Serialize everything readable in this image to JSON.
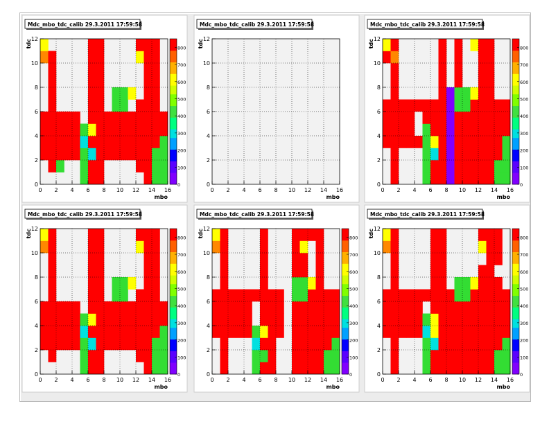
{
  "palette": [
    "#8000ff",
    "#5a00ff",
    "#0000ff",
    "#00a0ff",
    "#00e0e0",
    "#00ff80",
    "#40e040",
    "#80ff00",
    "#d0ff00",
    "#ffff00",
    "#ffb000",
    "#ff6000",
    "#ff0000"
  ],
  "colors": {
    "empty": "#f2f2f2",
    "frame_bg": "#ececec",
    "pad_bg": "#ffffff",
    "grid": "#000000"
  },
  "chart_data": [
    {
      "type": "heatmap",
      "title": "Mdc_mbo_tdc_calib 29.3.2011 17:59:58",
      "xlabel": "mbo",
      "ylabel": "tdc",
      "xlim": [
        0,
        16
      ],
      "ylim": [
        0,
        12
      ],
      "xticks": [
        "0",
        "2",
        "4",
        "6",
        "8",
        "10",
        "12",
        "14",
        "16"
      ],
      "yticks": [
        "0",
        "2",
        "4",
        "6",
        "8",
        "10",
        "12"
      ],
      "zticks": [
        "0",
        "100",
        "200",
        "300",
        "400",
        "500",
        "600",
        "700",
        "800"
      ],
      "zmax": 850,
      "cells": [
        "......RR.....RR.",
        ".R....RR....RRR.",
        "RRRRRRRRRRRRRRRR",
        "RRRRRRRRRRRRRRRR",
        "RRRRRRRRRRRRRRRR",
        "RRRRRRRRRRRRRRRR",
        ".R....RR....RRR.",
        ".R....RR.....RR.",
        ".R....RR.....RR.",
        ".R....RR.....RR.",
        "RR....RR.....RR.",
        "RR....RR....RRR."
      ],
      "overrides": [
        [
          5,
          0,
          "G"
        ],
        [
          2,
          1,
          "G"
        ],
        [
          5,
          1,
          "G"
        ],
        [
          14,
          1,
          "G"
        ],
        [
          15,
          1,
          "G"
        ],
        [
          14,
          0,
          "G"
        ],
        [
          15,
          0,
          "G"
        ],
        [
          5,
          2,
          "G"
        ],
        [
          14,
          2,
          "G"
        ],
        [
          15,
          2,
          "G"
        ],
        [
          6,
          2,
          "C"
        ],
        [
          5,
          3,
          "C"
        ],
        [
          15,
          3,
          "G"
        ],
        [
          5,
          4,
          "G"
        ],
        [
          6,
          4,
          "Y"
        ],
        [
          5,
          5,
          "W"
        ],
        [
          9,
          6,
          "G"
        ],
        [
          10,
          6,
          "G"
        ],
        [
          9,
          7,
          "G"
        ],
        [
          10,
          7,
          "G"
        ],
        [
          11,
          7,
          "Y"
        ],
        [
          1,
          10,
          "O"
        ],
        [
          12,
          10,
          "Y"
        ],
        [
          0,
          11,
          "Y"
        ],
        [
          12,
          11,
          "R"
        ],
        [
          1,
          11,
          "W"
        ],
        [
          1,
          10,
          "R"
        ],
        [
          0,
          10,
          "O"
        ]
      ]
    },
    {
      "type": "heatmap",
      "title": "Mdc_mbo_tdc_calib 29.3.2011 17:59:58",
      "xlabel": "mbo",
      "ylabel": "tdc",
      "xlim": [
        0,
        16
      ],
      "ylim": [
        0,
        12
      ],
      "xticks": [
        "0",
        "2",
        "4",
        "6",
        "8",
        "10",
        "12",
        "14",
        "16"
      ],
      "yticks": [
        "0",
        "2",
        "4",
        "6",
        "8",
        "10",
        "12"
      ],
      "zticks": [],
      "zmax": 850,
      "cells": [],
      "overrides": []
    },
    {
      "type": "heatmap",
      "title": "Mdc_mbo_tdc_calib 29.3.2011 17:59:58",
      "xlabel": "mbo",
      "ylabel": "tdc",
      "xlim": [
        0,
        16
      ],
      "ylim": [
        0,
        12
      ],
      "xticks": [
        "0",
        "2",
        "4",
        "6",
        "8",
        "10",
        "12",
        "14",
        "16"
      ],
      "yticks": [
        "0",
        "2",
        "4",
        "6",
        "8",
        "10",
        "12"
      ],
      "zticks": [
        "0",
        "100",
        "200",
        "300",
        "400",
        "500",
        "600",
        "700",
        "800"
      ],
      "zmax": 850,
      "cells": [
        ".R...RRR.RRRRRR.",
        ".R...RRR.RRRRRR.",
        ".R...RRR.RRRRRR.",
        "RRRRRRRRRRRRRRRR",
        "RRRRRRRRRRRRRRRR",
        "RRRRRRRRRRRRRRRR",
        "RRRRRRRRRRRRRRRR",
        ".R.....R.R..RR..",
        ".R.....R.R..RR..",
        ".R.....R.R..RR..",
        "RR.....R.R..RR..",
        "RR.....R.R..RR.."
      ],
      "overrides": [
        [
          8,
          0,
          "V"
        ],
        [
          8,
          1,
          "V"
        ],
        [
          8,
          2,
          "V"
        ],
        [
          8,
          3,
          "V"
        ],
        [
          8,
          4,
          "V"
        ],
        [
          8,
          5,
          "V"
        ],
        [
          8,
          6,
          "V"
        ],
        [
          8,
          7,
          "V"
        ],
        [
          5,
          0,
          "G"
        ],
        [
          5,
          1,
          "G"
        ],
        [
          5,
          2,
          "G"
        ],
        [
          6,
          2,
          "C"
        ],
        [
          5,
          3,
          "G"
        ],
        [
          6,
          3,
          "Y"
        ],
        [
          5,
          4,
          "G"
        ],
        [
          4,
          4,
          "W"
        ],
        [
          4,
          5,
          "W"
        ],
        [
          14,
          1,
          "G"
        ],
        [
          15,
          1,
          "G"
        ],
        [
          14,
          0,
          "G"
        ],
        [
          15,
          0,
          "G"
        ],
        [
          15,
          2,
          "G"
        ],
        [
          15,
          3,
          "G"
        ],
        [
          9,
          6,
          "G"
        ],
        [
          10,
          6,
          "G"
        ],
        [
          9,
          7,
          "G"
        ],
        [
          10,
          7,
          "G"
        ],
        [
          11,
          7,
          "Y"
        ],
        [
          1,
          10,
          "O"
        ],
        [
          0,
          11,
          "Y"
        ],
        [
          1,
          11,
          "R"
        ],
        [
          11,
          11,
          "Y"
        ],
        [
          11,
          10,
          "W"
        ],
        [
          0,
          10,
          "R"
        ],
        [
          1,
          10,
          "O"
        ]
      ]
    },
    {
      "type": "heatmap",
      "title": "Mdc_mbo_tdc_calib 29.3.2011 17:59:58",
      "xlabel": "mbo",
      "ylabel": "tdc",
      "xlim": [
        0,
        16
      ],
      "ylim": [
        0,
        12
      ],
      "xticks": [
        "0",
        "2",
        "4",
        "6",
        "8",
        "10",
        "12",
        "14",
        "16"
      ],
      "yticks": [
        "0",
        "2",
        "4",
        "6",
        "8",
        "10",
        "12"
      ],
      "zticks": [
        "0",
        "100",
        "200",
        "300",
        "400",
        "500",
        "600",
        "700",
        "800"
      ],
      "zmax": 850,
      "cells": [
        "......RR.....RR.",
        ".R....RR....RRR.",
        "RRRRRRRRRRRRRRRR",
        "RRRRRRRRRRRRRRRR",
        "RRRRRRRRRRRRRRRR",
        "RRRRRRRRRRRRRRRR",
        ".R....RR....RRR.",
        ".R....RR.....RR.",
        ".R....RR.....RR.",
        ".R....RR.....RR.",
        "RR....RR.....RR.",
        "RR....RR....RRR."
      ],
      "overrides": [
        [
          5,
          0,
          "G"
        ],
        [
          5,
          1,
          "G"
        ],
        [
          14,
          1,
          "G"
        ],
        [
          15,
          1,
          "G"
        ],
        [
          14,
          0,
          "G"
        ],
        [
          15,
          0,
          "G"
        ],
        [
          5,
          2,
          "G"
        ],
        [
          14,
          2,
          "G"
        ],
        [
          15,
          2,
          "G"
        ],
        [
          6,
          2,
          "C"
        ],
        [
          5,
          3,
          "C"
        ],
        [
          15,
          3,
          "G"
        ],
        [
          5,
          4,
          "G"
        ],
        [
          6,
          4,
          "Y"
        ],
        [
          5,
          5,
          "W"
        ],
        [
          9,
          6,
          "G"
        ],
        [
          10,
          6,
          "G"
        ],
        [
          9,
          7,
          "G"
        ],
        [
          10,
          7,
          "G"
        ],
        [
          11,
          7,
          "Y"
        ],
        [
          0,
          10,
          "O"
        ],
        [
          12,
          10,
          "Y"
        ],
        [
          0,
          11,
          "Y"
        ],
        [
          12,
          11,
          "R"
        ]
      ]
    },
    {
      "type": "heatmap",
      "title": "Mdc_mbo_tdc_calib 29.3.2011 17:59:58",
      "xlabel": "mbo",
      "ylabel": "tdc",
      "xlim": [
        0,
        16
      ],
      "ylim": [
        0,
        12
      ],
      "xticks": [
        "0",
        "2",
        "4",
        "6",
        "8",
        "10",
        "12",
        "14",
        "16"
      ],
      "yticks": [
        "0",
        "2",
        "4",
        "6",
        "8",
        "10",
        "12"
      ],
      "zticks": [
        "0",
        "100",
        "200",
        "300",
        "400",
        "500",
        "600",
        "700",
        "800"
      ],
      "zmax": 850,
      "cells": [
        ".R...RRR..RRRRRR",
        ".R...RRR..RRRRRR",
        ".R...RRR..RRRRRR",
        "RRRRRRRRR.RRRRRR",
        "RRRRRRRRR.RRRRRR",
        "RRRRRRRRR.RRRRRR",
        "RRRRRRRRR.RRRRRR",
        ".R....R...RR.R..",
        ".R....R...RR.R..",
        ".R....R...RR.R..",
        "RR....R...RR.R..",
        "RR....R...RR.R.."
      ],
      "overrides": [
        [
          5,
          0,
          "G"
        ],
        [
          5,
          1,
          "G"
        ],
        [
          6,
          1,
          "G"
        ],
        [
          5,
          2,
          "C"
        ],
        [
          5,
          3,
          "G"
        ],
        [
          6,
          3,
          "Y"
        ],
        [
          5,
          4,
          "W"
        ],
        [
          5,
          5,
          "W"
        ],
        [
          14,
          0,
          "G"
        ],
        [
          15,
          0,
          "G"
        ],
        [
          14,
          1,
          "G"
        ],
        [
          15,
          1,
          "G"
        ],
        [
          15,
          2,
          "G"
        ],
        [
          10,
          6,
          "G"
        ],
        [
          11,
          6,
          "G"
        ],
        [
          10,
          7,
          "G"
        ],
        [
          11,
          7,
          "G"
        ],
        [
          12,
          7,
          "Y"
        ],
        [
          0,
          10,
          "O"
        ],
        [
          0,
          11,
          "Y"
        ],
        [
          1,
          10,
          "R"
        ],
        [
          11,
          10,
          "Y"
        ],
        [
          11,
          11,
          "R"
        ],
        [
          12,
          11,
          "R"
        ]
      ]
    },
    {
      "type": "heatmap",
      "title": "Mdc_mbo_tdc_calib 29.3.2011 17:59:58",
      "xlabel": "mbo",
      "ylabel": "tdc",
      "xlim": [
        0,
        16
      ],
      "ylim": [
        0,
        12
      ],
      "xticks": [
        "0",
        "2",
        "4",
        "6",
        "8",
        "10",
        "12",
        "14",
        "16"
      ],
      "yticks": [
        "0",
        "2",
        "4",
        "6",
        "8",
        "10",
        "12"
      ],
      "zticks": [
        "0",
        "100",
        "200",
        "300",
        "400",
        "500",
        "600",
        "700",
        "800"
      ],
      "zmax": 850,
      "cells": [
        ".R...RRRRRRRRRRR",
        ".R...RRRRRRRRRRR",
        ".R...RRRRRRRRRRR",
        "RRRRRRRRRRRRRRRR",
        "RRRRRRRRRRRRRRRR",
        "RRRRRRRRRRRRRRRR",
        "RRRRRRRRRRRRRRRR",
        ".R....RR....RRR.",
        ".R....RR....RR..",
        ".R....RR.....RR.",
        "RR....RR.....RR.",
        "RR....RR.....RR."
      ],
      "overrides": [
        [
          5,
          0,
          "G"
        ],
        [
          5,
          1,
          "G"
        ],
        [
          5,
          2,
          "G"
        ],
        [
          6,
          2,
          "C"
        ],
        [
          5,
          3,
          "C"
        ],
        [
          6,
          3,
          "Y"
        ],
        [
          5,
          4,
          "G"
        ],
        [
          6,
          4,
          "Y"
        ],
        [
          5,
          5,
          "W"
        ],
        [
          14,
          0,
          "G"
        ],
        [
          15,
          0,
          "G"
        ],
        [
          14,
          1,
          "G"
        ],
        [
          15,
          1,
          "G"
        ],
        [
          15,
          2,
          "G"
        ],
        [
          9,
          6,
          "G"
        ],
        [
          10,
          6,
          "G"
        ],
        [
          9,
          7,
          "G"
        ],
        [
          10,
          7,
          "G"
        ],
        [
          11,
          7,
          "Y"
        ],
        [
          0,
          10,
          "O"
        ],
        [
          0,
          11,
          "Y"
        ],
        [
          12,
          10,
          "Y"
        ],
        [
          12,
          11,
          "R"
        ],
        [
          13,
          11,
          "R"
        ]
      ]
    }
  ]
}
